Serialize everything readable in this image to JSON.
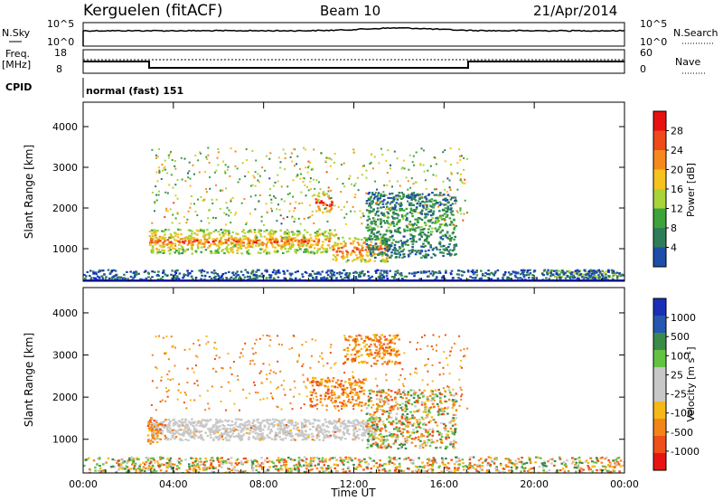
{
  "header": {
    "station": "Kerguelen (fitACF)",
    "beam": "Beam 10",
    "date": "21/Apr/2014"
  },
  "top_panels": {
    "nsky": {
      "label": "N.Sky",
      "ticks": [
        "10^5",
        "10^0"
      ]
    },
    "nsearch": {
      "label": "N.Search",
      "ticks": [
        "10^5",
        "10^0"
      ]
    },
    "freq": {
      "label": "Freq.",
      "unit": "[MHz]",
      "ticks": [
        "18",
        "8"
      ]
    },
    "nave": {
      "label": "Nave",
      "ticks": [
        "60",
        "0"
      ]
    },
    "cpid": {
      "label": "CPID",
      "value": "normal (fast) 151"
    }
  },
  "colors": {
    "power_scale": [
      "#1020d0",
      "#1d4ea8",
      "#2f7d58",
      "#3da33a",
      "#a8d43a",
      "#f5c21e",
      "#f5891e",
      "#ee4a1a",
      "#e81010"
    ],
    "velocity_scale": [
      "#1a2fb8",
      "#2656b0",
      "#3a8a4a",
      "#63c341",
      "#c8c8c8",
      "#c8c8c8",
      "#f6b818",
      "#f38418",
      "#ef4f18",
      "#e81414"
    ],
    "ground_scatter": "#c8c8c8"
  },
  "chart_data": [
    {
      "type": "heatmap",
      "name": "Power",
      "ylabel": "Slant Range [km]",
      "xlabel": "Time UT",
      "x_ticks": [
        "00:00",
        "04:00",
        "08:00",
        "12:00",
        "16:00",
        "20:00",
        "00:00"
      ],
      "y_ticks": [
        1000,
        2000,
        3000,
        4000
      ],
      "ylim": [
        200,
        4600
      ],
      "colorbar": {
        "label": "Power [dB]",
        "ticks": [
          4,
          8,
          12,
          16,
          20,
          24,
          28
        ],
        "range": [
          0,
          32
        ]
      },
      "features": [
        {
          "t0": 2.9,
          "t1": 11.2,
          "r0": 900,
          "r1": 1500,
          "level": 0.75
        },
        {
          "t0": 2.9,
          "t1": 10.0,
          "r0": 1100,
          "r1": 1300,
          "level": 0.95
        },
        {
          "t0": 10.2,
          "t1": 11.0,
          "r0": 1900,
          "r1": 2400,
          "level": 0.95
        },
        {
          "t0": 11.0,
          "t1": 13.5,
          "r0": 700,
          "r1": 1300,
          "level": 0.85
        },
        {
          "t0": 12.5,
          "t1": 16.5,
          "r0": 800,
          "r1": 2400,
          "level": 0.35
        },
        {
          "t0": 20.3,
          "t1": 23.8,
          "r0": 300,
          "r1": 500,
          "level": 0.6
        },
        {
          "t0": 0.0,
          "t1": 24.0,
          "r0": 200,
          "r1": 500,
          "level": 0.2
        }
      ]
    },
    {
      "type": "heatmap",
      "name": "Velocity",
      "ylabel": "Slant Range [km]",
      "xlabel": "Time UT",
      "x_ticks": [
        "00:00",
        "04:00",
        "08:00",
        "12:00",
        "16:00",
        "20:00",
        "00:00"
      ],
      "y_ticks": [
        1000,
        2000,
        3000,
        4000
      ],
      "ylim": [
        200,
        4600
      ],
      "colorbar": {
        "label": "Velocity [m s",
        "label_sup": "-1",
        "label_end": "]",
        "ticks": [
          1000,
          500,
          100,
          25,
          -25,
          -100,
          -500,
          -1000
        ]
      },
      "features": [
        {
          "t0": 3.0,
          "t1": 13.0,
          "r0": 1000,
          "r1": 1500,
          "kind": "ground"
        },
        {
          "t0": 2.8,
          "t1": 3.4,
          "r0": 900,
          "r1": 1600,
          "kind": "orange"
        },
        {
          "t0": 10.0,
          "t1": 12.5,
          "r0": 1800,
          "r1": 2500,
          "kind": "orange"
        },
        {
          "t0": 11.5,
          "t1": 14.0,
          "r0": 2800,
          "r1": 3500,
          "kind": "orange"
        },
        {
          "t0": 12.5,
          "t1": 16.5,
          "r0": 800,
          "r1": 2200,
          "kind": "mixed"
        },
        {
          "t0": 0.0,
          "t1": 24.0,
          "r0": 200,
          "r1": 600,
          "kind": "mixed"
        }
      ]
    }
  ],
  "xaxis_label": "Time UT"
}
